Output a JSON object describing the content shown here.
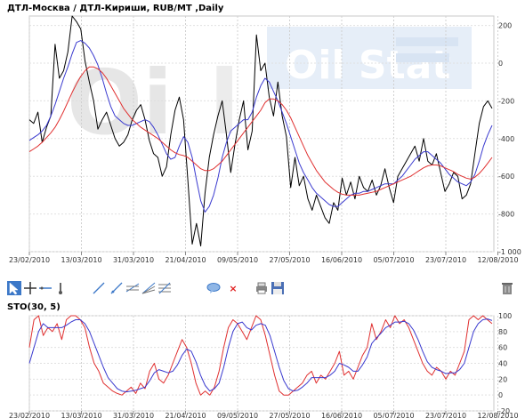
{
  "main_chart": {
    "title": "ДТЛ-Москва / ДТЛ-Кириши,  RUB/MT ,Daily",
    "watermark": "Oil Stat",
    "y_ticks": [
      "200",
      "0",
      "-200",
      "-400",
      "-600",
      "-800",
      "-1 000"
    ],
    "x_ticks": [
      "23/02/2010",
      "13/03/2010",
      "31/03/2010",
      "21/04/2010",
      "09/05/2010",
      "27/05/2010",
      "16/06/2010",
      "05/07/2010",
      "23/07/2010",
      "12/08/2010"
    ]
  },
  "toolbar": {
    "tools": [
      {
        "name": "pointer-icon",
        "active": true
      },
      {
        "name": "crosshair-icon"
      },
      {
        "name": "horizontal-line-icon"
      },
      {
        "name": "vertical-line-icon"
      },
      {
        "name": "trend-line-icon"
      },
      {
        "name": "ray-line-icon"
      },
      {
        "name": "parallel-channel-icon"
      },
      {
        "name": "fibonacci-fan-icon"
      },
      {
        "name": "fibonacci-retracement-icon"
      },
      {
        "name": "comment-bubble-icon"
      },
      {
        "name": "delete-object-icon"
      },
      {
        "name": "print-icon"
      },
      {
        "name": "save-disk-icon"
      },
      {
        "name": "trash-icon"
      }
    ],
    "colors": {
      "active": "#3c78c8",
      "line": "#3c78c8",
      "delete": "#e02020"
    }
  },
  "sto_chart": {
    "title": "STO(30, 5)",
    "y_ticks": [
      "100",
      "80",
      "60",
      "40",
      "20",
      "0",
      "-20"
    ],
    "x_ticks": [
      "23/02/2010",
      "13/03/2010",
      "31/03/2010",
      "21/04/2010",
      "09/05/2010",
      "27/05/2010",
      "16/06/2010",
      "05/07/2010",
      "23/07/2010",
      "12/08/2010"
    ]
  },
  "chart_data": [
    {
      "type": "line",
      "title": "ДТЛ-Москва / ДТЛ-Кириши,  RUB/MT ,Daily",
      "ylim": [
        -1000,
        250
      ],
      "x_ticks": [
        "23/02/2010",
        "13/03/2010",
        "31/03/2010",
        "21/04/2010",
        "09/05/2010",
        "27/05/2010",
        "16/06/2010",
        "05/07/2010",
        "23/07/2010",
        "12/08/2010"
      ],
      "colors": {
        "price": "#000000",
        "fast_ma": "#3a3acf",
        "slow_ma": "#e03030"
      },
      "series": [
        {
          "key": "price",
          "values": [
            -300,
            -320,
            -260,
            -420,
            -340,
            -280,
            100,
            -80,
            -40,
            60,
            250,
            220,
            180,
            10,
            -100,
            -200,
            -350,
            -300,
            -260,
            -330,
            -400,
            -440,
            -420,
            -380,
            -300,
            -250,
            -220,
            -300,
            -410,
            -480,
            -500,
            -600,
            -550,
            -380,
            -250,
            -180,
            -300,
            -620,
            -960,
            -850,
            -970,
            -690,
            -500,
            -380,
            -280,
            -200,
            -380,
            -580,
            -430,
            -300,
            -200,
            -460,
            -360,
            150,
            -40,
            0,
            -180,
            -280,
            -100,
            -280,
            -390,
            -660,
            -500,
            -650,
            -600,
            -720,
            -780,
            -700,
            -760,
            -820,
            -850,
            -740,
            -780,
            -610,
            -700,
            -630,
            -720,
            -600,
            -660,
            -680,
            -620,
            -700,
            -650,
            -560,
            -660,
            -740,
            -600,
            -560,
            -520,
            -480,
            -440,
            -520,
            -400,
            -520,
            -540,
            -480,
            -580,
            -680,
            -640,
            -580,
            -600,
            -720,
            -700,
            -640,
            -480,
            -320,
            -230,
            -200,
            -240
          ]
        },
        {
          "key": "fast_ma",
          "values": [
            -410,
            -395,
            -380,
            -360,
            -330,
            -280,
            -220,
            -150,
            -80,
            -20,
            50,
            110,
            120,
            105,
            80,
            40,
            -10,
            -80,
            -160,
            -230,
            -280,
            -300,
            -320,
            -330,
            -330,
            -320,
            -310,
            -300,
            -310,
            -340,
            -380,
            -430,
            -480,
            -510,
            -500,
            -440,
            -390,
            -420,
            -500,
            -620,
            -730,
            -790,
            -760,
            -700,
            -610,
            -500,
            -420,
            -360,
            -340,
            -320,
            -300,
            -300,
            -260,
            -180,
            -120,
            -80,
            -100,
            -150,
            -200,
            -260,
            -320,
            -390,
            -460,
            -530,
            -580,
            -620,
            -660,
            -690,
            -710,
            -730,
            -750,
            -760,
            -760,
            -740,
            -720,
            -700,
            -690,
            -690,
            -680,
            -680,
            -670,
            -660,
            -650,
            -640,
            -640,
            -640,
            -620,
            -600,
            -570,
            -540,
            -510,
            -490,
            -470,
            -470,
            -490,
            -510,
            -530,
            -560,
            -590,
            -610,
            -630,
            -640,
            -650,
            -630,
            -590,
            -520,
            -440,
            -380,
            -330
          ]
        },
        {
          "key": "slow_ma",
          "values": [
            -470,
            -455,
            -440,
            -420,
            -395,
            -370,
            -340,
            -300,
            -255,
            -205,
            -155,
            -110,
            -70,
            -40,
            -20,
            -20,
            -30,
            -50,
            -80,
            -120,
            -160,
            -200,
            -240,
            -270,
            -300,
            -320,
            -340,
            -355,
            -370,
            -385,
            -400,
            -420,
            -440,
            -460,
            -475,
            -485,
            -490,
            -500,
            -520,
            -540,
            -560,
            -570,
            -570,
            -560,
            -540,
            -520,
            -490,
            -460,
            -430,
            -400,
            -370,
            -340,
            -310,
            -280,
            -250,
            -210,
            -190,
            -190,
            -200,
            -220,
            -250,
            -290,
            -340,
            -390,
            -440,
            -490,
            -530,
            -570,
            -600,
            -630,
            -650,
            -670,
            -685,
            -695,
            -700,
            -700,
            -700,
            -700,
            -695,
            -690,
            -685,
            -680,
            -670,
            -660,
            -650,
            -640,
            -630,
            -620,
            -610,
            -600,
            -585,
            -570,
            -555,
            -545,
            -540,
            -540,
            -545,
            -555,
            -565,
            -575,
            -590,
            -600,
            -610,
            -615,
            -605,
            -585,
            -560,
            -530,
            -500
          ]
        }
      ]
    },
    {
      "type": "line",
      "title": "STO(30, 5)",
      "ylim": [
        -20,
        100
      ],
      "x_ticks": [
        "23/02/2010",
        "13/03/2010",
        "31/03/2010",
        "21/04/2010",
        "09/05/2010",
        "27/05/2010",
        "16/06/2010",
        "05/07/2010",
        "23/07/2010",
        "12/08/2010"
      ],
      "colors": {
        "k": "#e03030",
        "d": "#3a3acf"
      },
      "series": [
        {
          "key": "k",
          "values": [
            60,
            95,
            100,
            75,
            85,
            80,
            90,
            70,
            95,
            100,
            100,
            95,
            85,
            60,
            40,
            30,
            15,
            10,
            5,
            2,
            0,
            5,
            10,
            2,
            15,
            8,
            30,
            40,
            20,
            15,
            25,
            40,
            55,
            70,
            60,
            40,
            15,
            0,
            5,
            0,
            10,
            30,
            60,
            85,
            95,
            90,
            80,
            70,
            85,
            100,
            95,
            75,
            50,
            25,
            5,
            0,
            0,
            5,
            10,
            15,
            25,
            30,
            15,
            25,
            20,
            30,
            40,
            55,
            25,
            30,
            20,
            35,
            50,
            60,
            90,
            70,
            80,
            95,
            85,
            100,
            90,
            95,
            85,
            70,
            55,
            40,
            30,
            25,
            35,
            30,
            20,
            30,
            25,
            40,
            55,
            95,
            100,
            95,
            100,
            95,
            90
          ]
        },
        {
          "key": "d",
          "values": [
            40,
            60,
            80,
            90,
            85,
            85,
            85,
            85,
            88,
            92,
            95,
            95,
            90,
            80,
            65,
            50,
            35,
            22,
            15,
            8,
            5,
            4,
            5,
            6,
            8,
            10,
            18,
            28,
            32,
            30,
            28,
            30,
            38,
            50,
            58,
            55,
            42,
            25,
            12,
            5,
            8,
            15,
            35,
            60,
            80,
            90,
            92,
            85,
            82,
            88,
            90,
            88,
            75,
            55,
            35,
            18,
            8,
            5,
            6,
            10,
            15,
            22,
            22,
            22,
            22,
            25,
            30,
            40,
            38,
            35,
            30,
            30,
            38,
            48,
            65,
            72,
            78,
            85,
            88,
            92,
            92,
            93,
            90,
            82,
            70,
            55,
            42,
            35,
            32,
            30,
            27,
            28,
            28,
            32,
            40,
            60,
            80,
            90,
            95,
            96,
            94
          ]
        }
      ]
    }
  ]
}
